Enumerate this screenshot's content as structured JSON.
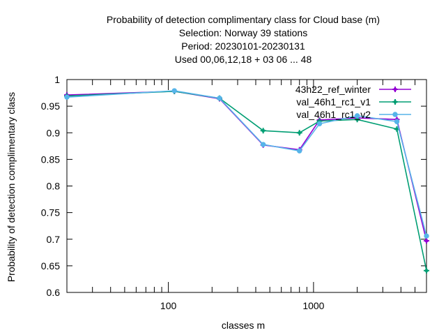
{
  "chart_data": {
    "type": "line",
    "title_lines": [
      "Probability of detection complimentary class  for Cloud base (m)",
      "Selection: Norway     39 stations",
      "Period: 20230101-20230131",
      "Used  00,06,12,18  + 03 06 ... 48"
    ],
    "xlabel": "classes m",
    "ylabel": "Probability of detection complimentary class",
    "x_scale": "log",
    "xlim": [
      20,
      6000
    ],
    "ylim": [
      0.6,
      1.0
    ],
    "x_ticks": [
      100,
      1000
    ],
    "x_tick_labels": [
      "100",
      "1000"
    ],
    "y_ticks": [
      0.6,
      0.65,
      0.7,
      0.75,
      0.8,
      0.85,
      0.9,
      0.95,
      1.0
    ],
    "y_tick_labels": [
      "0.6",
      "0.65",
      "0.7",
      "0.75",
      "0.8",
      "0.85",
      "0.9",
      "0.95",
      "1"
    ],
    "grid": false,
    "legend_position": "top-right",
    "x": [
      20,
      110,
      225,
      450,
      800,
      1100,
      2000,
      3750,
      6000
    ],
    "series": [
      {
        "name": "43h22_ref_winter",
        "color": "#9400d3",
        "marker": "plus",
        "values": [
          0.971,
          0.978,
          0.964,
          0.877,
          0.868,
          0.924,
          0.928,
          0.925,
          0.697
        ]
      },
      {
        "name": "val_46h1_rc1_v1",
        "color": "#009e73",
        "marker": "plus",
        "values": [
          0.969,
          0.978,
          0.965,
          0.904,
          0.9,
          0.922,
          0.925,
          0.907,
          0.641
        ]
      },
      {
        "name": "val_46h1_rc1_v2",
        "color": "#56b4e9",
        "marker": "circle",
        "values": [
          0.967,
          0.979,
          0.965,
          0.878,
          0.866,
          0.917,
          0.932,
          0.921,
          0.706
        ]
      }
    ]
  }
}
